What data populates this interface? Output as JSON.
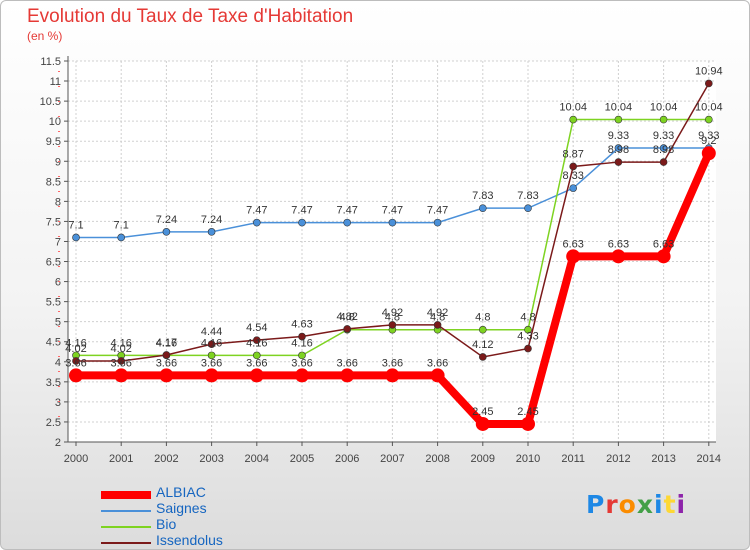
{
  "title": "Evolution du Taux de Taxe d'Habitation",
  "subtitle": "(en %)",
  "logo_text": "Proxiti",
  "chart_data": {
    "type": "line",
    "x": [
      "2000",
      "2001",
      "2002",
      "2003",
      "2004",
      "2005",
      "2006",
      "2007",
      "2008",
      "2009",
      "2010",
      "2011",
      "2012",
      "2013",
      "2014"
    ],
    "ylim": [
      2,
      11.5
    ],
    "yticks": [
      2,
      2.5,
      3,
      3.5,
      4,
      4.5,
      5,
      5.5,
      6,
      6.5,
      7,
      7.5,
      8,
      8.5,
      9,
      9.5,
      10,
      10.5,
      11,
      11.5
    ],
    "grid": true,
    "legend_position": "bottom-left",
    "series": [
      {
        "name": "ALBIAC",
        "color": "#ff0000",
        "values": [
          3.66,
          3.66,
          3.66,
          3.66,
          3.66,
          3.66,
          3.66,
          3.66,
          3.66,
          2.45,
          2.45,
          6.63,
          6.63,
          6.63,
          9.2
        ],
        "labels": [
          "3.66",
          "3.66",
          "3.66",
          "3.66",
          "3.66",
          "3.66",
          "3.66",
          "3.66",
          "3.66",
          "2.45",
          "2.45",
          "6.63",
          "6.63",
          "6.63",
          "9.2"
        ]
      },
      {
        "name": "Saignes",
        "color": "#4a90d9",
        "values": [
          7.1,
          7.1,
          7.24,
          7.24,
          7.47,
          7.47,
          7.47,
          7.47,
          7.47,
          7.83,
          7.83,
          8.33,
          9.33,
          9.33,
          9.33
        ],
        "labels": [
          "7.1",
          "7.1",
          "7.24",
          "7.24",
          "7.47",
          "7.47",
          "7.47",
          "7.47",
          "7.47",
          "7.83",
          "7.83",
          "8.33",
          "9.33",
          "9.33",
          "9.33"
        ]
      },
      {
        "name": "Bio",
        "color": "#7ed321",
        "values": [
          4.16,
          4.16,
          4.16,
          4.16,
          4.16,
          4.16,
          4.8,
          4.8,
          4.8,
          4.8,
          4.8,
          10.04,
          10.04,
          10.04,
          10.04
        ],
        "labels": [
          "4.16",
          "4.16",
          "4.16",
          "4.16",
          "4.16",
          "4.16",
          "4.8",
          "4.8",
          "4.8",
          "4.8",
          "4.8",
          "10.04",
          "10.04",
          "10.04",
          "10.04"
        ]
      },
      {
        "name": "Issendolus",
        "color": "#7b1a1a",
        "values": [
          4.02,
          4.02,
          4.17,
          4.44,
          4.54,
          4.63,
          4.82,
          4.92,
          4.92,
          4.12,
          4.33,
          8.87,
          8.98,
          8.98,
          10.94
        ],
        "labels": [
          "4.02",
          "4.02",
          "4.17",
          "4.44",
          "4.54",
          "4.63",
          "4.82",
          "4.92",
          "4.92",
          "4.12",
          "4.33",
          "8.87",
          "8.98",
          "8.98",
          "10.94"
        ]
      }
    ]
  }
}
